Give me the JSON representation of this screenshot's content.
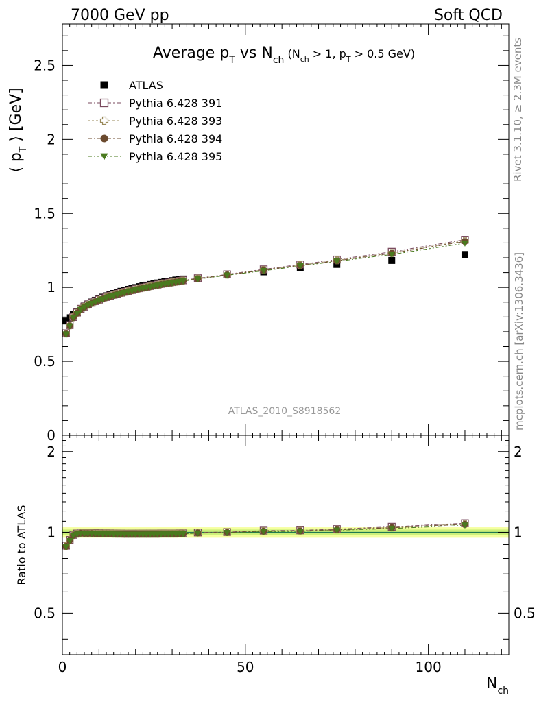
{
  "header": {
    "left": "7000 GeV pp",
    "right": "Soft QCD"
  },
  "title": {
    "main_a": "Average p",
    "main_sub": "T",
    "main_b": " vs N",
    "main_sub2": "ch",
    "cond_a": " (N",
    "cond_sub1": "ch",
    "cond_b": " > 1, p",
    "cond_sub2": "T",
    "cond_c": " > 0.5 GeV)"
  },
  "ylabel_main": {
    "a": "⟨ p",
    "sub": "T",
    "b": " ⟩ [GeV]"
  },
  "ylabel_ratio": "Ratio to ATLAS",
  "xlabel": {
    "a": "N",
    "sub": "ch"
  },
  "side_labels": {
    "top": "Rivet 3.1.10, ≥ 2.3M events",
    "bottom": "mcplots.cern.ch [arXiv:1306.3436]"
  },
  "analysis_id": "ATLAS_2010_S8918562",
  "colors": {
    "atlas": "#000000",
    "p391": "#7a4a5e",
    "p393": "#9a8a5a",
    "p394": "#6b4a2e",
    "p395": "#4a7a1e",
    "band_inner": "#ccf07a",
    "band_outer": "#f5ffa0",
    "ratio_line": "#1f7a50"
  },
  "chart_data": {
    "type": "scatter",
    "x_ticks": [
      "0",
      "50",
      "100"
    ],
    "y_ticks_main": [
      "0",
      "0.5",
      "1",
      "1.5",
      "2",
      "2.5"
    ],
    "y_ticks_ratio": [
      "0.5",
      "1",
      "2"
    ],
    "xlim": [
      0,
      122
    ],
    "ylim_main": [
      0,
      2.78
    ],
    "ylim_ratio": [
      0.35,
      2.3
    ],
    "ratio_log_scale": true,
    "legend": [
      {
        "name": "ATLAS",
        "marker": "square-filled"
      },
      {
        "name": "Pythia 6.428 391",
        "marker": "square-open"
      },
      {
        "name": "Pythia 6.428 393",
        "marker": "cross-open"
      },
      {
        "name": "Pythia 6.428 394",
        "marker": "circle-filled"
      },
      {
        "name": "Pythia 6.428 395",
        "marker": "triangle-down-filled"
      }
    ],
    "x": [
      1,
      2,
      3,
      4,
      5,
      6,
      7,
      8,
      9,
      10,
      11,
      12,
      13,
      14,
      15,
      16,
      17,
      18,
      19,
      20,
      21,
      22,
      23,
      24,
      25,
      26,
      27,
      28,
      29,
      30,
      31,
      32,
      33,
      37,
      45,
      55,
      65,
      75,
      90,
      110
    ],
    "atlas": [
      0.773,
      0.795,
      0.817,
      0.838,
      0.857,
      0.874,
      0.888,
      0.901,
      0.913,
      0.924,
      0.934,
      0.943,
      0.951,
      0.959,
      0.967,
      0.974,
      0.981,
      0.987,
      0.993,
      0.999,
      1.005,
      1.01,
      1.015,
      1.02,
      1.025,
      1.03,
      1.034,
      1.038,
      1.042,
      1.046,
      1.05,
      1.053,
      1.057,
      1.063,
      1.085,
      1.105,
      1.135,
      1.155,
      1.182,
      1.222
    ],
    "series": [
      {
        "name": "Pythia 6.428 391",
        "values": [
          0.69,
          0.745,
          0.8,
          0.83,
          0.855,
          0.87,
          0.884,
          0.896,
          0.907,
          0.917,
          0.926,
          0.935,
          0.943,
          0.95,
          0.957,
          0.964,
          0.97,
          0.976,
          0.982,
          0.988,
          0.994,
          0.999,
          1.004,
          1.009,
          1.014,
          1.019,
          1.024,
          1.028,
          1.032,
          1.036,
          1.04,
          1.044,
          1.048,
          1.062,
          1.088,
          1.122,
          1.155,
          1.188,
          1.24,
          1.322
        ]
      },
      {
        "name": "Pythia 6.428 393",
        "values": [
          0.688,
          0.743,
          0.798,
          0.828,
          0.853,
          0.868,
          0.882,
          0.894,
          0.905,
          0.915,
          0.924,
          0.933,
          0.941,
          0.948,
          0.955,
          0.962,
          0.968,
          0.974,
          0.98,
          0.986,
          0.992,
          0.997,
          1.002,
          1.007,
          1.012,
          1.017,
          1.022,
          1.026,
          1.03,
          1.034,
          1.038,
          1.042,
          1.046,
          1.06,
          1.086,
          1.118,
          1.151,
          1.183,
          1.232,
          1.315
        ]
      },
      {
        "name": "Pythia 6.428 394",
        "values": [
          0.686,
          0.741,
          0.796,
          0.826,
          0.851,
          0.866,
          0.88,
          0.892,
          0.903,
          0.913,
          0.922,
          0.931,
          0.939,
          0.946,
          0.953,
          0.96,
          0.966,
          0.972,
          0.978,
          0.984,
          0.99,
          0.995,
          1.0,
          1.005,
          1.01,
          1.015,
          1.02,
          1.024,
          1.028,
          1.032,
          1.036,
          1.04,
          1.044,
          1.058,
          1.084,
          1.116,
          1.149,
          1.18,
          1.23,
          1.31
        ]
      },
      {
        "name": "Pythia 6.428 395",
        "values": [
          0.684,
          0.739,
          0.794,
          0.824,
          0.849,
          0.864,
          0.878,
          0.89,
          0.901,
          0.911,
          0.92,
          0.929,
          0.937,
          0.944,
          0.951,
          0.958,
          0.964,
          0.97,
          0.976,
          0.982,
          0.988,
          0.993,
          0.998,
          1.003,
          1.008,
          1.013,
          1.018,
          1.022,
          1.026,
          1.03,
          1.034,
          1.038,
          1.042,
          1.056,
          1.082,
          1.112,
          1.145,
          1.176,
          1.222,
          1.298
        ]
      }
    ]
  }
}
